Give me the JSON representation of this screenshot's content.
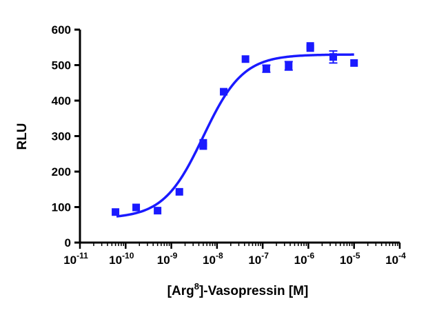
{
  "chart_data": {
    "type": "scatter",
    "title": "",
    "xlabel": {
      "pre": "[Arg",
      "sup": "8",
      "post": "]-Vasopressin [M]"
    },
    "ylabel": "RLU",
    "x_scale": "log10",
    "xlim_log10": [
      -11,
      -4
    ],
    "ylim": [
      0,
      600
    ],
    "y_ticks": [
      {
        "value": 0,
        "label": "0"
      },
      {
        "value": 100,
        "label": "100"
      },
      {
        "value": 200,
        "label": "200"
      },
      {
        "value": 300,
        "label": "300"
      },
      {
        "value": 400,
        "label": "400"
      },
      {
        "value": 500,
        "label": "500"
      },
      {
        "value": 600,
        "label": "600"
      }
    ],
    "x_ticks": [
      {
        "exp": -11,
        "base": "10",
        "sup": "-11"
      },
      {
        "exp": -10,
        "base": "10",
        "sup": "-10"
      },
      {
        "exp": -9,
        "base": "10",
        "sup": "-9"
      },
      {
        "exp": -8,
        "base": "10",
        "sup": "-8"
      },
      {
        "exp": -7,
        "base": "10",
        "sup": "-7"
      },
      {
        "exp": -6,
        "base": "10",
        "sup": "-6"
      },
      {
        "exp": -5,
        "base": "10",
        "sup": "-5"
      },
      {
        "exp": -4,
        "base": "10",
        "sup": "-4"
      }
    ],
    "series": [
      {
        "name": "data",
        "color": "#1a1aff",
        "marker": "square",
        "points": [
          {
            "x": 6e-11,
            "y": 86
          },
          {
            "x": 1.7e-10,
            "y": 99
          },
          {
            "x": 5e-10,
            "y": 90
          },
          {
            "x": 1.5e-09,
            "y": 143
          },
          {
            "x": 5e-09,
            "y": 272
          },
          {
            "x": 5e-09,
            "y": 281
          },
          {
            "x": 1.4e-08,
            "y": 425
          },
          {
            "x": 4.2e-08,
            "y": 517
          },
          {
            "x": 1.2e-07,
            "y": 490,
            "err": 10
          },
          {
            "x": 3.7e-07,
            "y": 498,
            "err": 12
          },
          {
            "x": 1.1e-06,
            "y": 548
          },
          {
            "x": 1.1e-06,
            "y": 554
          },
          {
            "x": 3.5e-06,
            "y": 523,
            "err": 17
          },
          {
            "x": 1e-05,
            "y": 506
          }
        ]
      }
    ],
    "fit": {
      "type": "4PL",
      "color": "#1a1aff",
      "bottom": 68,
      "top": 530,
      "log_ec50": -8.3,
      "hill": 1.0,
      "x_range_log10": [
        -10.2,
        -5
      ]
    }
  }
}
